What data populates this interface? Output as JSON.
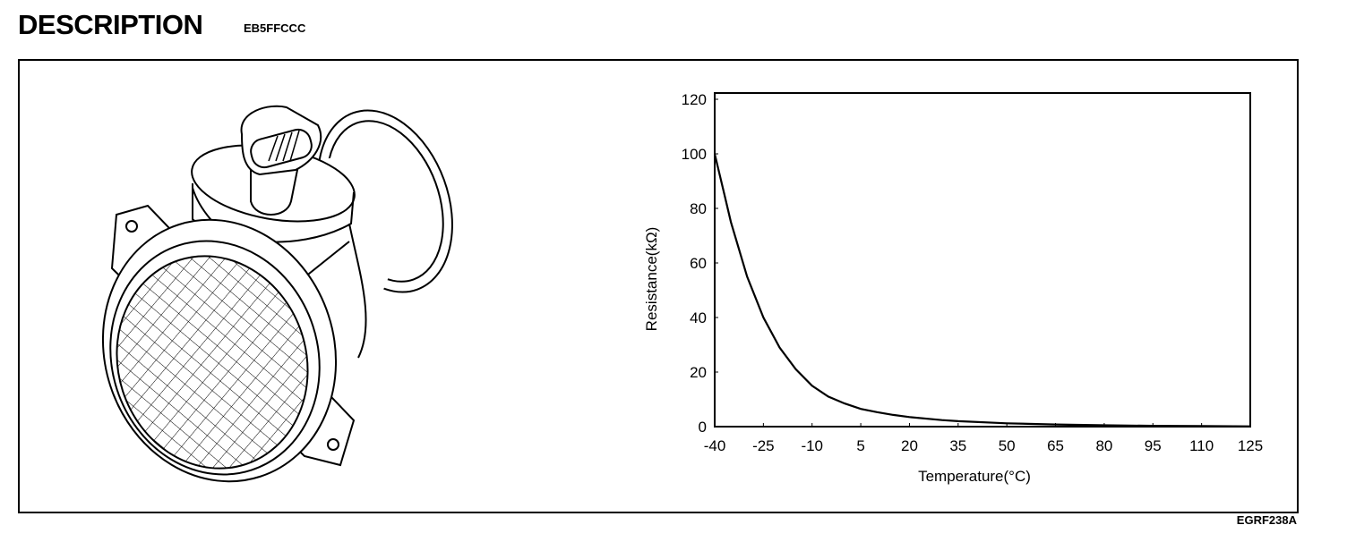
{
  "header": {
    "title": "DESCRIPTION",
    "code": "EB5FFCCC"
  },
  "figure_id": "EGRF238A",
  "illustration": {
    "icon": "mass-air-flow-sensor-illustration"
  },
  "chart_data": {
    "type": "line",
    "title": "",
    "xlabel": "Temperature(°C)",
    "ylabel": "Resistance(kΩ)",
    "xlim": [
      -40,
      125
    ],
    "ylim": [
      0,
      120
    ],
    "xticks": [
      "-40",
      "-25",
      "-10",
      "5",
      "20",
      "35",
      "50",
      "65",
      "80",
      "95",
      "110",
      "125"
    ],
    "yticks": [
      "0",
      "20",
      "40",
      "60",
      "80",
      "100",
      "120"
    ],
    "grid": false,
    "series": [
      {
        "name": "Resistance",
        "x": [
          -40,
          -37,
          -35,
          -30,
          -25,
          -20,
          -15,
          -10,
          -5,
          0,
          5,
          10,
          15,
          20,
          30,
          35,
          50,
          65,
          80,
          95,
          110,
          125
        ],
        "y": [
          100,
          85,
          75,
          55,
          40,
          29,
          21,
          15,
          11,
          8.5,
          6.5,
          5.3,
          4.3,
          3.5,
          2.4,
          2,
          1.2,
          0.8,
          0.5,
          0.3,
          0.2,
          0.1
        ]
      }
    ]
  }
}
